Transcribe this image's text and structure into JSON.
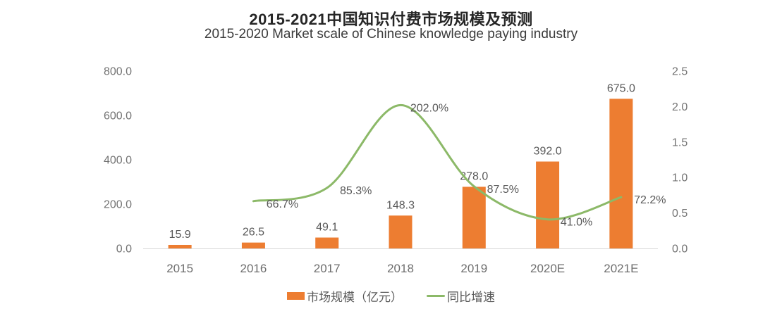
{
  "header": {
    "title": "2015-2021中国知识付费市场规模及预测",
    "subtitle": "2015-2020 Market scale of Chinese knowledge paying industry"
  },
  "chart_data": {
    "type": "combo",
    "title": "2015-2021中国知识付费市场规模及预测",
    "subtitle": "2015-2020 Market scale of Chinese knowledge paying industry",
    "categories": [
      "2015",
      "2016",
      "2017",
      "2018",
      "2019",
      "2020E",
      "2021E"
    ],
    "series": [
      {
        "name": "市场规模（亿元）",
        "type": "bar",
        "axis": "left",
        "color": "#ED7D31",
        "values": [
          15.9,
          26.5,
          49.1,
          148.3,
          278.0,
          392.0,
          675.0
        ],
        "data_labels": [
          "15.9",
          "26.5",
          "49.1",
          "148.3",
          "278.0",
          "392.0",
          "675.0"
        ]
      },
      {
        "name": "同比增速",
        "type": "line",
        "axis": "right",
        "color": "#8CB968",
        "values": [
          null,
          0.667,
          0.853,
          2.02,
          0.875,
          0.41,
          0.722
        ],
        "data_labels": [
          null,
          "66.7%",
          "85.3%",
          "202.0%",
          "87.5%",
          "41.0%",
          "72.2%"
        ]
      }
    ],
    "left_axis": {
      "min": 0,
      "max": 800,
      "ticks": [
        "0.0",
        "200.0",
        "400.0",
        "600.0",
        "800.0"
      ]
    },
    "right_axis": {
      "min": 0,
      "max": 2.5,
      "ticks": [
        "0.0",
        "0.5",
        "1.0",
        "1.5",
        "2.0",
        "2.5"
      ]
    },
    "legend": {
      "position": "bottom",
      "items": [
        {
          "label": "市场规模（亿元）",
          "marker": "bar-swatch",
          "color": "#ED7D31"
        },
        {
          "label": "同比增速",
          "marker": "line-swatch",
          "color": "#8CB968"
        }
      ]
    },
    "grid": false,
    "colors": {
      "bar": "#ED7D31",
      "line": "#8CB968",
      "axis_line": "#D9D9D9",
      "tick_text": "#737373",
      "category_text": "#6E6E6E",
      "data_label_text": "#595959"
    }
  }
}
